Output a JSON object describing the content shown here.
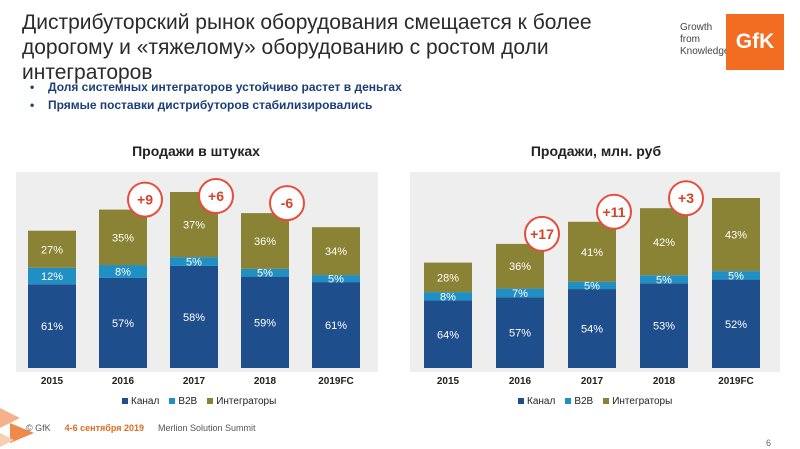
{
  "header": {
    "title": "Дистрибуторский рынок оборудования смещается к более дорогому и «тяжелому» оборудованию с ростом доли интеграторов",
    "brand_tagline": [
      "Growth",
      "from",
      "Knowledge"
    ],
    "brand_logo": "GfK"
  },
  "bullets": [
    "Доля системных интеграторов устойчиво растет в деньгах",
    "Прямые поставки дистрибуторов стабилизировались"
  ],
  "colors": {
    "kanal": "#1f4e8c",
    "b2b": "#1f8fc4",
    "integrators": "#8a8234",
    "badge_border": "#e84c3d",
    "badge_text": "#d8412a",
    "accent": "#f26c21"
  },
  "chart_data": [
    {
      "type": "bar",
      "stacked": true,
      "title": "Продажи в штуках",
      "categories": [
        "2015",
        "2016",
        "2017",
        "2018",
        "2019FC"
      ],
      "series": [
        {
          "name": "Канал",
          "values": [
            61,
            57,
            58,
            59,
            61
          ],
          "labels": [
            "61%",
            "57%",
            "58%",
            "59%",
            "61%"
          ]
        },
        {
          "name": "B2B",
          "values": [
            12,
            8,
            5,
            5,
            5
          ],
          "labels": [
            "12%",
            "8%",
            "5%",
            "5%",
            "5%"
          ]
        },
        {
          "name": "Интеграторы",
          "values": [
            27,
            35,
            37,
            36,
            34
          ],
          "labels": [
            "27%",
            "35%",
            "37%",
            "36%",
            "34%"
          ]
        }
      ],
      "relative_totals": [
        0.78,
        0.9,
        1.0,
        0.88,
        0.8
      ],
      "badges": [
        {
          "category": "2016",
          "text": "+9"
        },
        {
          "category": "2017",
          "text": "+6"
        },
        {
          "category": "2018",
          "text": "-6"
        }
      ],
      "legend": [
        "Канал",
        "B2B",
        "Интеграторы"
      ]
    },
    {
      "type": "bar",
      "stacked": true,
      "title": "Продажи, млн. руб",
      "categories": [
        "2015",
        "2016",
        "2017",
        "2018",
        "2019FC"
      ],
      "series": [
        {
          "name": "Канал",
          "values": [
            64,
            57,
            54,
            53,
            52
          ],
          "labels": [
            "64%",
            "57%",
            "54%",
            "53%",
            "52%"
          ]
        },
        {
          "name": "B2B",
          "values": [
            8,
            7,
            5,
            5,
            5
          ],
          "labels": [
            "8%",
            "7%",
            "5%",
            "5%",
            "5%"
          ]
        },
        {
          "name": "Интеграторы",
          "values": [
            28,
            36,
            41,
            42,
            43
          ],
          "labels": [
            "28%",
            "36%",
            "41%",
            "42%",
            "43%"
          ]
        }
      ],
      "relative_totals": [
        0.62,
        0.73,
        0.86,
        0.94,
        1.0
      ],
      "badges": [
        {
          "category": "2016",
          "text": "+17"
        },
        {
          "category": "2017",
          "text": "+11"
        },
        {
          "category": "2018",
          "text": "+3"
        }
      ],
      "legend": [
        "Канал",
        "B2B",
        "Интеграторы"
      ]
    }
  ],
  "footer": {
    "copyright": "© GfK",
    "date": "4-6 сентября 2019",
    "event": "Merlion Solution Summit",
    "page": "6"
  }
}
